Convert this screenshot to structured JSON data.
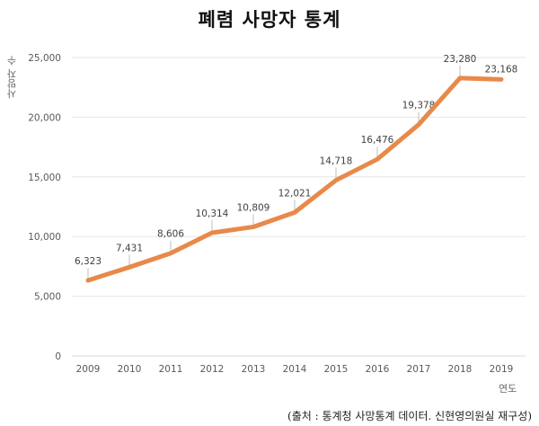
{
  "chart_data": {
    "type": "line",
    "title": "폐렴 사망자 통계",
    "xlabel": "연도",
    "ylabel": "사망자 수",
    "categories": [
      "2009",
      "2010",
      "2011",
      "2012",
      "2013",
      "2014",
      "2015",
      "2016",
      "2017",
      "2018",
      "2019"
    ],
    "series": [
      {
        "name": "사망자 수",
        "values": [
          6323,
          7431,
          8606,
          10314,
          10809,
          12021,
          14718,
          16476,
          19378,
          23280,
          23168
        ],
        "labels": [
          "6,323",
          "7,431",
          "8,606",
          "10,314",
          "10,809",
          "12,021",
          "14,718",
          "16,476",
          "19,378",
          "23,280",
          "23,168"
        ]
      }
    ],
    "ylim": [
      0,
      25000
    ],
    "yticks": [
      0,
      5000,
      10000,
      15000,
      20000,
      25000
    ],
    "ytick_labels": [
      "0",
      "5,000",
      "10,000",
      "15,000",
      "20,000",
      "25,000"
    ],
    "grid": true,
    "line_color": "#E8894A",
    "source": "(출처 : 통계청 사망통계 데이터. 신현영의원실 재구성)"
  }
}
